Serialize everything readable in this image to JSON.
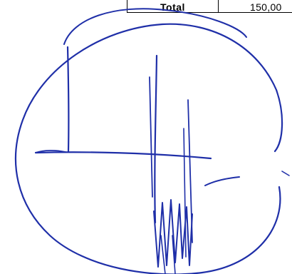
{
  "document": {
    "table": {
      "total_label": "Total",
      "total_value": "150,00"
    },
    "annotation": {
      "type": "handwritten cancellation mark",
      "ink_color": "#1f2fa8"
    }
  }
}
